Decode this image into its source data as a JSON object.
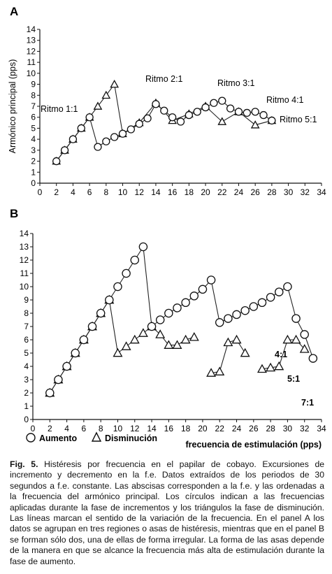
{
  "chart_data": [
    {
      "panel": "A",
      "type": "line",
      "ylabel": "Armónico principal (pps)",
      "xlim": [
        0,
        34
      ],
      "ylim": [
        0,
        14
      ],
      "xticks": [
        0,
        2,
        4,
        6,
        8,
        10,
        12,
        14,
        16,
        18,
        20,
        22,
        24,
        26,
        28,
        30,
        32,
        34
      ],
      "yticks": [
        0,
        1,
        2,
        3,
        4,
        5,
        6,
        7,
        8,
        9,
        10,
        11,
        12,
        13,
        14
      ],
      "grid": false,
      "annotations": [
        "Ritmo 1:1",
        "Ritmo 2:1",
        "Ritmo 3:1",
        "Ritmo 4:1",
        "Ritmo 5:1"
      ],
      "series": [
        {
          "name": "Aumento",
          "marker": "circle",
          "x": [
            2,
            3,
            4,
            5,
            6,
            7,
            8,
            9,
            10,
            11,
            12,
            13,
            14,
            15,
            16,
            17,
            18,
            19,
            20,
            21,
            22,
            23,
            24,
            25,
            26,
            27,
            28
          ],
          "y": [
            2,
            3,
            4,
            5,
            6,
            3.3,
            3.8,
            4.2,
            4.5,
            4.9,
            5.4,
            5.9,
            7.2,
            6.6,
            6.0,
            5.6,
            6.2,
            6.5,
            6.9,
            7.3,
            7.5,
            6.8,
            6.5,
            6.4,
            6.5,
            6.2,
            5.7
          ]
        },
        {
          "name": "Disminución",
          "marker": "triangle",
          "x": [
            2,
            3,
            4,
            5,
            6,
            7,
            8,
            9,
            10,
            12,
            14,
            16,
            18,
            20,
            22,
            24,
            26,
            28
          ],
          "y": [
            2,
            3,
            4,
            5,
            6,
            7,
            8,
            9,
            4.5,
            5.5,
            7.3,
            5.7,
            6.3,
            7.0,
            5.6,
            6.5,
            5.3,
            5.7
          ]
        }
      ]
    },
    {
      "panel": "B",
      "type": "line",
      "xlim": [
        0,
        34
      ],
      "ylim": [
        0,
        14
      ],
      "xticks": [
        0,
        2,
        4,
        6,
        8,
        10,
        12,
        14,
        16,
        18,
        20,
        22,
        24,
        26,
        28,
        30,
        32,
        34
      ],
      "yticks": [
        0,
        1,
        2,
        3,
        4,
        5,
        6,
        7,
        8,
        9,
        10,
        11,
        12,
        13,
        14
      ],
      "grid": false,
      "annotations": [
        "4:1",
        "5:1",
        "7:1"
      ],
      "series": [
        {
          "name": "Aumento",
          "marker": "circle",
          "x": [
            2,
            3,
            4,
            5,
            6,
            7,
            8,
            9,
            10,
            11,
            12,
            13,
            14,
            15,
            16,
            17,
            18,
            19,
            20,
            21,
            22,
            23,
            24,
            25,
            26,
            27,
            28,
            29,
            30,
            31,
            32,
            33
          ],
          "y": [
            2,
            3,
            4,
            5,
            6,
            7,
            8,
            9,
            10,
            11,
            12,
            13,
            7,
            7.5,
            8,
            8.4,
            8.8,
            9.3,
            9.8,
            10.5,
            7.3,
            7.6,
            7.9,
            8.2,
            8.5,
            8.8,
            9.2,
            9.6,
            10,
            7.6,
            6.4,
            4.6
          ]
        },
        {
          "name": "Disminución",
          "marker": "triangle",
          "segments": [
            {
              "x": [
                2,
                3,
                4,
                5,
                6,
                7,
                8,
                9,
                10,
                11,
                12,
                13,
                14,
                15,
                16,
                17,
                18,
                19
              ],
              "y": [
                2,
                3,
                4,
                5,
                6,
                7,
                8,
                9,
                5,
                5.5,
                6,
                6.5,
                7,
                6.4,
                5.6,
                5.6,
                6,
                6.2
              ]
            },
            {
              "x": [
                21,
                22,
                23,
                24,
                25
              ],
              "y": [
                3.5,
                3.6,
                5.8,
                6,
                5
              ]
            },
            {
              "x": [
                27,
                28,
                29,
                30,
                31,
                32
              ],
              "y": [
                3.8,
                3.9,
                4,
                6,
                6,
                5.3
              ]
            }
          ]
        }
      ]
    }
  ],
  "labels": {
    "panel_a": "A",
    "panel_b": "B",
    "legend_aumento": "Aumento",
    "legend_disminucion": "Disminución",
    "xlabel_b": "frecuencia de estimulación (pps)"
  },
  "caption": {
    "fig_label": "Fig. 5.",
    "text": " Histéresis por frecuencia en el papilar de cobayo. Excursiones de incremento y decremento en la f.e. Datos extraídos de los periodos de 30 segundos a f.e. constante. Las abscisas corresponden a la f.e. y las ordenadas a la frecuencia del armónico principal. Los círculos indican a las frecuencias aplicadas durante la fase de incrementos y los triángulos la fase de disminución. Las líneas marcan el sentido de la variación de la frecuencia. En el panel A los datos se agrupan en tres regiones o asas de histéresis, mientras que en el panel B se forman sólo dos, una de ellas de forma irregular. La forma de las asas depende de la manera en que se alcance la frecuencia más alta de estimulación durante la fase de aumento."
  }
}
